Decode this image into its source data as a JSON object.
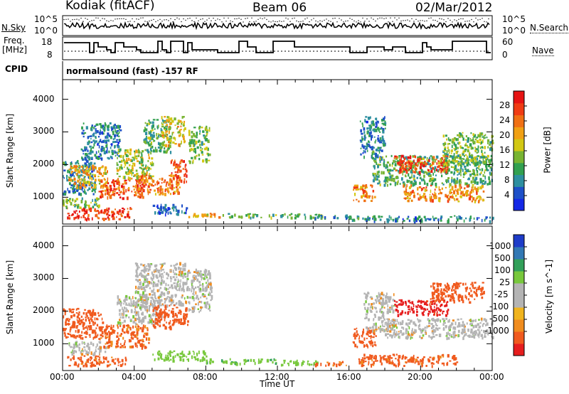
{
  "header": {
    "station": "Kodiak (fitACF)",
    "beam": "Beam 06",
    "date": "02/Mar/2012"
  },
  "noise_panel": {
    "left_label": "N.Sky",
    "right_label": "N.Search",
    "left_ticks": [
      "10^5",
      "10^0"
    ],
    "right_ticks": [
      "10^5",
      "10^0"
    ]
  },
  "freq_panel": {
    "left_label_line1": "Freq.",
    "left_label_line2": "[MHz]",
    "right_label": "Nave",
    "left_ticks": [
      "18",
      "8"
    ],
    "right_ticks": [
      "60",
      "0"
    ]
  },
  "cpid": {
    "label": "CPID",
    "value": "normalsound (fast) -157 RF"
  },
  "x_axis": {
    "title": "Time UT",
    "ticks": [
      "00:00",
      "04:00",
      "08:00",
      "12:00",
      "16:00",
      "20:00",
      "00:00"
    ]
  },
  "power_panel": {
    "ylabel": "Slant Range [km]",
    "yticks": [
      "4000",
      "3000",
      "2000",
      "1000"
    ],
    "colorbar_label": "Power [dB]",
    "colorbar_ticks": [
      "28",
      "24",
      "20",
      "16",
      "12",
      "8",
      "4"
    ],
    "colors": [
      "#1428e6",
      "#1e50c8",
      "#2e8fa0",
      "#32a050",
      "#78b432",
      "#d2c814",
      "#f0a014",
      "#f07014",
      "#f03c14",
      "#e61414"
    ]
  },
  "velocity_panel": {
    "ylabel": "Slant Range [km]",
    "yticks": [
      "4000",
      "3000",
      "2000",
      "1000"
    ],
    "colorbar_label": "Velocity [m s^-1]",
    "colorbar_ticks": [
      "1000",
      "500",
      "100",
      "25",
      "-25",
      "-100",
      "-500",
      "-1000"
    ],
    "colors": [
      "#1e3cc8",
      "#3278b4",
      "#32a05a",
      "#78c83c",
      "#b4b4b4",
      "#b4b4b4",
      "#f0b41e",
      "#f08c1e",
      "#f05a1e",
      "#e61e1e"
    ]
  },
  "chart_data": [
    {
      "type": "heatmap",
      "title": "Power [dB]",
      "xlabel": "Time UT",
      "ylabel": "Slant Range [km]",
      "xlim": [
        0,
        24
      ],
      "ylim": [
        180,
        4600
      ],
      "colorbar_range": [
        0,
        32
      ],
      "regions": [
        {
          "t": [
            0.0,
            1.8
          ],
          "r": [
            1100,
            2200
          ],
          "v": 8
        },
        {
          "t": [
            0.3,
            2.5
          ],
          "r": [
            1300,
            2000
          ],
          "v": 20
        },
        {
          "t": [
            0.2,
            3.8
          ],
          "r": [
            350,
            700
          ],
          "v": 28
        },
        {
          "t": [
            0.0,
            2.0
          ],
          "r": [
            700,
            1000
          ],
          "v": 14
        },
        {
          "t": [
            1.0,
            3.2
          ],
          "r": [
            2200,
            3300
          ],
          "v": 8
        },
        {
          "t": [
            2.0,
            4.5
          ],
          "r": [
            1000,
            1600
          ],
          "v": 26
        },
        {
          "t": [
            3.0,
            5.0
          ],
          "r": [
            1600,
            2500
          ],
          "v": 16
        },
        {
          "t": [
            4.0,
            6.5
          ],
          "r": [
            1100,
            1700
          ],
          "v": 24
        },
        {
          "t": [
            4.5,
            6.0
          ],
          "r": [
            2400,
            3400
          ],
          "v": 12
        },
        {
          "t": [
            5.5,
            6.8
          ],
          "r": [
            2600,
            3500
          ],
          "v": 18
        },
        {
          "t": [
            6.0,
            6.9
          ],
          "r": [
            1500,
            2200
          ],
          "v": 26
        },
        {
          "t": [
            7.0,
            8.2
          ],
          "r": [
            2100,
            3200
          ],
          "v": 14
        },
        {
          "t": [
            5.0,
            7.0
          ],
          "r": [
            500,
            800
          ],
          "v": 6
        },
        {
          "t": [
            7.0,
            9.0
          ],
          "r": [
            420,
            560
          ],
          "v": 20
        },
        {
          "t": [
            9.0,
            14.5
          ],
          "r": [
            400,
            520
          ],
          "v": 12
        },
        {
          "t": [
            14.0,
            16.0
          ],
          "r": [
            350,
            480
          ],
          "v": 10
        },
        {
          "t": [
            16.0,
            24.0
          ],
          "r": [
            300,
            450
          ],
          "v": 8
        },
        {
          "t": [
            16.2,
            17.4
          ],
          "r": [
            900,
            1400
          ],
          "v": 22
        },
        {
          "t": [
            16.6,
            18.0
          ],
          "r": [
            2200,
            3500
          ],
          "v": 8
        },
        {
          "t": [
            17.3,
            24.0
          ],
          "r": [
            1400,
            2300
          ],
          "v": 12
        },
        {
          "t": [
            18.5,
            21.5
          ],
          "r": [
            1800,
            2300
          ],
          "v": 28
        },
        {
          "t": [
            19.0,
            23.5
          ],
          "r": [
            900,
            1400
          ],
          "v": 22
        },
        {
          "t": [
            21.0,
            24.0
          ],
          "r": [
            2000,
            3000
          ],
          "v": 14
        }
      ]
    },
    {
      "type": "heatmap",
      "title": "Velocity [m s^-1]",
      "xlabel": "Time UT",
      "ylabel": "Slant Range [km]",
      "xlim": [
        0,
        24
      ],
      "ylim": [
        180,
        4600
      ],
      "colorbar_range": [
        -1000,
        1000
      ],
      "regions": [
        {
          "t": [
            0.0,
            2.2
          ],
          "r": [
            1200,
            2100
          ],
          "v": -300
        },
        {
          "t": [
            0.2,
            3.5
          ],
          "r": [
            350,
            650
          ],
          "v": -150
        },
        {
          "t": [
            0.3,
            2.5
          ],
          "r": [
            700,
            1100
          ],
          "v": 0
        },
        {
          "t": [
            2.0,
            4.8
          ],
          "r": [
            900,
            1600
          ],
          "v": -120
        },
        {
          "t": [
            3.0,
            5.5
          ],
          "r": [
            1600,
            2500
          ],
          "v": 0
        },
        {
          "t": [
            4.0,
            7.0
          ],
          "r": [
            2200,
            3500
          ],
          "v": 0
        },
        {
          "t": [
            5.0,
            7.0
          ],
          "r": [
            1500,
            2200
          ],
          "v": -200
        },
        {
          "t": [
            7.0,
            8.3
          ],
          "r": [
            2000,
            3300
          ],
          "v": 0
        },
        {
          "t": [
            5.0,
            8.0
          ],
          "r": [
            500,
            800
          ],
          "v": 60
        },
        {
          "t": [
            8.0,
            12.0
          ],
          "r": [
            420,
            560
          ],
          "v": 80
        },
        {
          "t": [
            12.0,
            14.5
          ],
          "r": [
            380,
            520
          ],
          "v": 50
        },
        {
          "t": [
            14.0,
            16.0
          ],
          "r": [
            350,
            480
          ],
          "v": -120
        },
        {
          "t": [
            16.2,
            17.5
          ],
          "r": [
            900,
            1500
          ],
          "v": -300
        },
        {
          "t": [
            16.8,
            18.5
          ],
          "r": [
            1400,
            2600
          ],
          "v": 0
        },
        {
          "t": [
            18.0,
            24.0
          ],
          "r": [
            1200,
            1800
          ],
          "v": 0
        },
        {
          "t": [
            18.5,
            21.5
          ],
          "r": [
            1900,
            2400
          ],
          "v": -800
        },
        {
          "t": [
            20.5,
            23.5
          ],
          "r": [
            2300,
            2900
          ],
          "v": -300
        },
        {
          "t": [
            16.5,
            22.0
          ],
          "r": [
            350,
            700
          ],
          "v": -150
        }
      ]
    }
  ]
}
